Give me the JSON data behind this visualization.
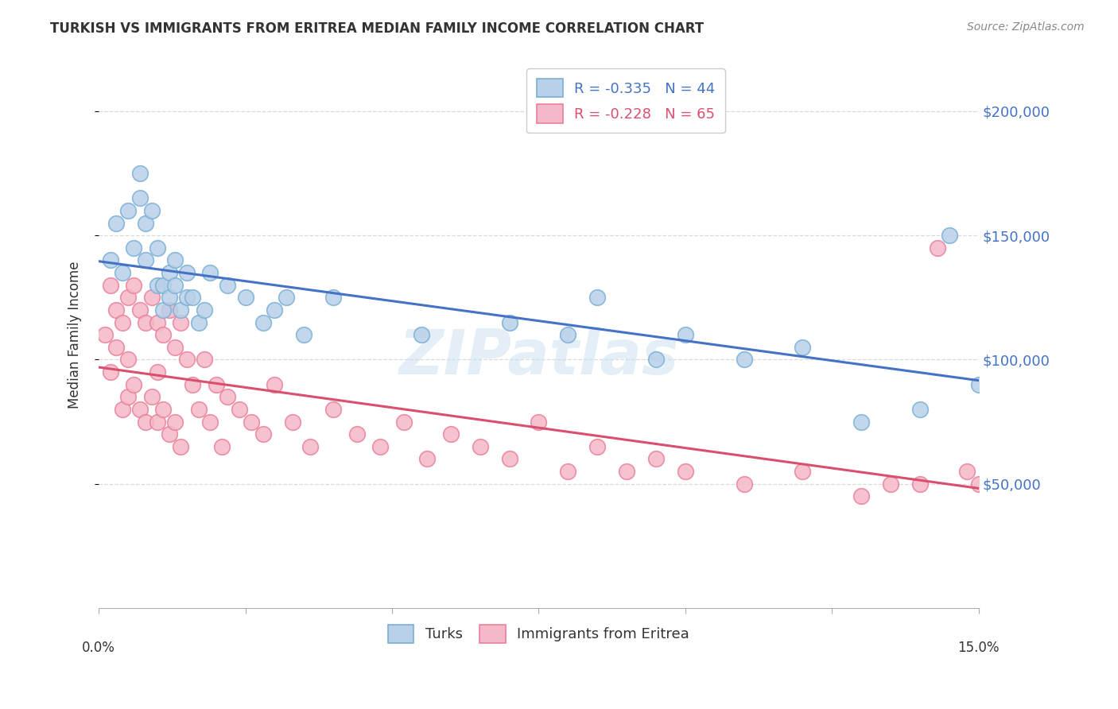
{
  "title": "TURKISH VS IMMIGRANTS FROM ERITREA MEDIAN FAMILY INCOME CORRELATION CHART",
  "source": "Source: ZipAtlas.com",
  "ylabel": "Median Family Income",
  "ytick_labels": [
    "$50,000",
    "$100,000",
    "$150,000",
    "$200,000"
  ],
  "ytick_values": [
    50000,
    100000,
    150000,
    200000
  ],
  "watermark": "ZIPatlas",
  "legend_blue_r": "-0.335",
  "legend_blue_n": "44",
  "legend_pink_r": "-0.228",
  "legend_pink_n": "65",
  "blue_color": "#b8d0e8",
  "blue_edge": "#7aafd4",
  "pink_color": "#f5b8c8",
  "pink_edge": "#e8809a",
  "blue_line_color": "#4472c4",
  "pink_line_color": "#d94f6e",
  "xlim": [
    0.0,
    0.15
  ],
  "ylim": [
    0,
    220000
  ],
  "turks_x": [
    0.002,
    0.003,
    0.004,
    0.005,
    0.006,
    0.007,
    0.007,
    0.008,
    0.008,
    0.009,
    0.01,
    0.01,
    0.011,
    0.011,
    0.012,
    0.012,
    0.013,
    0.013,
    0.014,
    0.015,
    0.015,
    0.016,
    0.017,
    0.018,
    0.019,
    0.022,
    0.025,
    0.028,
    0.03,
    0.032,
    0.035,
    0.04,
    0.055,
    0.07,
    0.08,
    0.085,
    0.095,
    0.1,
    0.11,
    0.12,
    0.13,
    0.14,
    0.145,
    0.15
  ],
  "turks_y": [
    140000,
    155000,
    135000,
    160000,
    145000,
    165000,
    175000,
    155000,
    140000,
    160000,
    130000,
    145000,
    130000,
    120000,
    135000,
    125000,
    130000,
    140000,
    120000,
    125000,
    135000,
    125000,
    115000,
    120000,
    135000,
    130000,
    125000,
    115000,
    120000,
    125000,
    110000,
    125000,
    110000,
    115000,
    110000,
    125000,
    100000,
    110000,
    100000,
    105000,
    75000,
    80000,
    150000,
    90000
  ],
  "eritrea_x": [
    0.001,
    0.002,
    0.002,
    0.003,
    0.003,
    0.004,
    0.004,
    0.005,
    0.005,
    0.005,
    0.006,
    0.006,
    0.007,
    0.007,
    0.008,
    0.008,
    0.009,
    0.009,
    0.01,
    0.01,
    0.01,
    0.011,
    0.011,
    0.012,
    0.012,
    0.013,
    0.013,
    0.014,
    0.014,
    0.015,
    0.016,
    0.017,
    0.018,
    0.019,
    0.02,
    0.021,
    0.022,
    0.024,
    0.026,
    0.028,
    0.03,
    0.033,
    0.036,
    0.04,
    0.044,
    0.048,
    0.052,
    0.056,
    0.06,
    0.065,
    0.07,
    0.075,
    0.08,
    0.085,
    0.09,
    0.095,
    0.1,
    0.11,
    0.12,
    0.13,
    0.135,
    0.14,
    0.143,
    0.148,
    0.15
  ],
  "eritrea_y": [
    110000,
    130000,
    95000,
    120000,
    105000,
    115000,
    80000,
    125000,
    100000,
    85000,
    130000,
    90000,
    120000,
    80000,
    115000,
    75000,
    125000,
    85000,
    115000,
    95000,
    75000,
    110000,
    80000,
    120000,
    70000,
    105000,
    75000,
    115000,
    65000,
    100000,
    90000,
    80000,
    100000,
    75000,
    90000,
    65000,
    85000,
    80000,
    75000,
    70000,
    90000,
    75000,
    65000,
    80000,
    70000,
    65000,
    75000,
    60000,
    70000,
    65000,
    60000,
    75000,
    55000,
    65000,
    55000,
    60000,
    55000,
    50000,
    55000,
    45000,
    50000,
    50000,
    145000,
    55000,
    50000
  ]
}
